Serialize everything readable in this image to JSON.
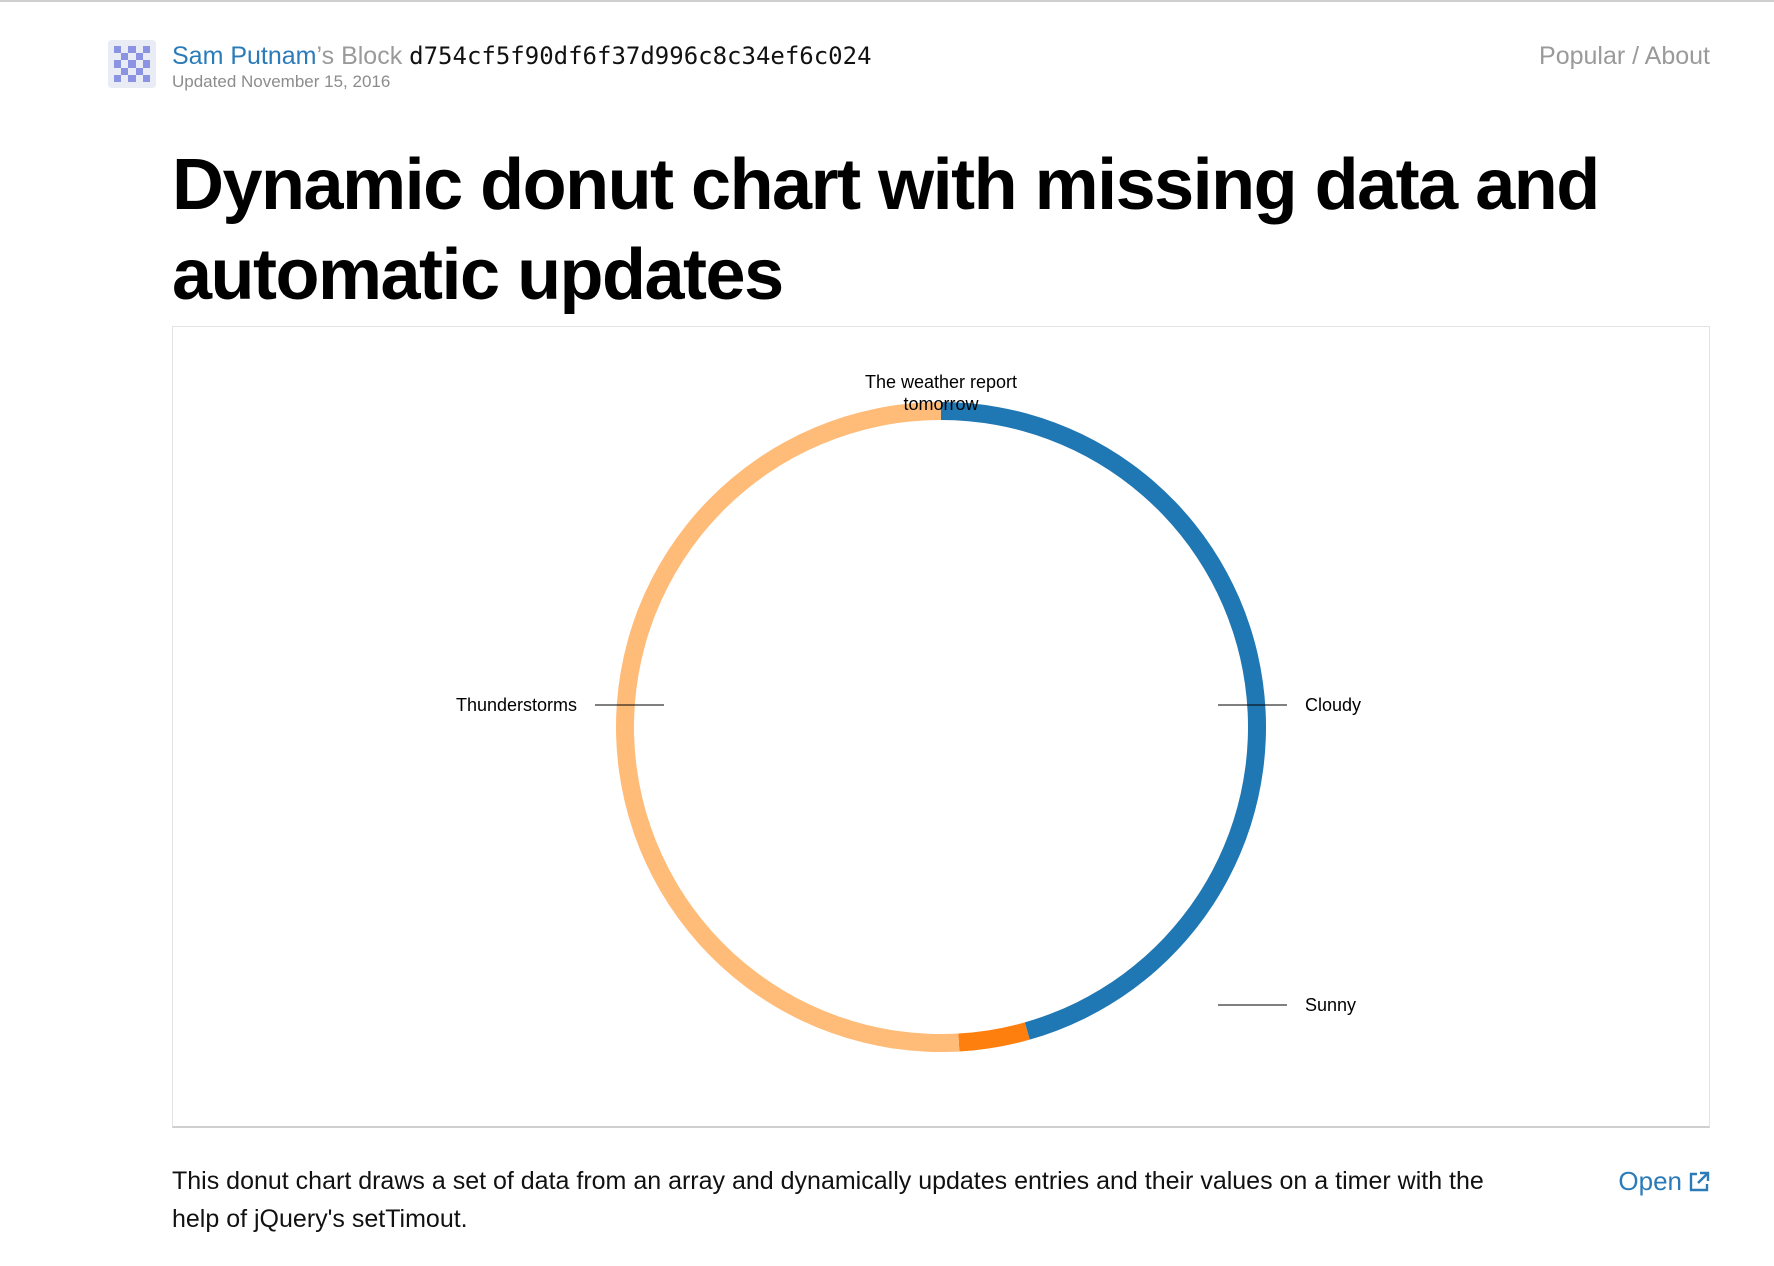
{
  "header": {
    "author": "Sam Putnam",
    "block_suffix": "’s Block",
    "gist_id": "d754cf5f90df6f37d996c8c34ef6c024",
    "updated": "Updated November 15, 2016",
    "nav_popular": "Popular",
    "nav_separator": " / ",
    "nav_about": "About"
  },
  "page": {
    "title": "Dynamic donut chart with missing data and automatic updates",
    "description": "This donut chart draws a set of data from an array and dynamically updates entries and their values on a timer with the help of jQuery's setTimout.",
    "open_label": "Open"
  },
  "chart_data": {
    "type": "pie",
    "variant": "donut",
    "title_lines": [
      "The weather report",
      "tomorrow"
    ],
    "slices": [
      {
        "label": "Cloudy",
        "value": 45.6,
        "color": "#1f77b4"
      },
      {
        "label": "Sunny",
        "value": 3.5,
        "color": "#ff7f0e"
      },
      {
        "label": "Thunderstorms",
        "value": 50.9,
        "color": "#ffbb78"
      }
    ]
  },
  "colors": {
    "link": "#2b7bb9",
    "muted": "#9a9a9a"
  }
}
